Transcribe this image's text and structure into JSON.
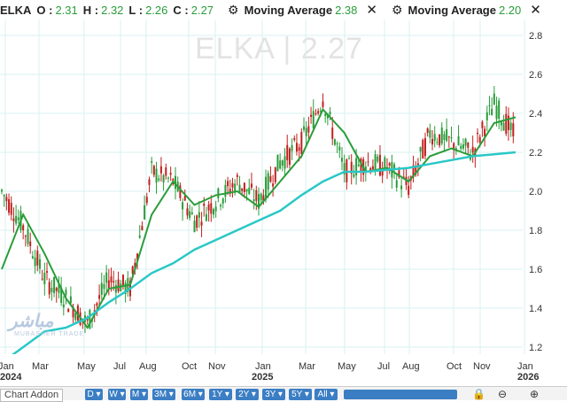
{
  "legend": {
    "symbol": "ELKA",
    "o_label": "O :",
    "o_value": "2.31",
    "h_label": "H :",
    "h_value": "2.32",
    "l_label": "L :",
    "l_value": "2.26",
    "c_label": "C :",
    "c_value": "2.27",
    "ma1_label": "Moving Average",
    "ma1_value": "2.38",
    "ma2_label": "Moving Average",
    "ma2_value": "2.20",
    "gear_icon": "gear-icon",
    "close_icon": "close-icon"
  },
  "watermark": "ELKA  |  2.27",
  "logo": {
    "name": "MUBASHER TRADE"
  },
  "toolbar": {
    "addon_label": "Chart Addon",
    "ranges": [
      "D",
      "W",
      "M",
      "3M",
      "6M",
      "1Y",
      "2Y",
      "3Y",
      "5Y",
      "All"
    ],
    "lock_icon": "lock-icon",
    "zoom_out_icon": "zoom-out-icon",
    "zoom_in_icon": "zoom-in-icon"
  },
  "colors": {
    "up": "#2a9d3a",
    "down": "#c0201e",
    "ma_fast": "#2a9d3a",
    "ma_slow": "#2bc7c7",
    "grid": "#d8f0f0"
  },
  "chart_data": {
    "type": "line",
    "title": "ELKA",
    "xlabel": "",
    "ylabel": "",
    "grid": true,
    "ylim": [
      1.1,
      2.9
    ],
    "y_ticks": [
      "2.8",
      "2.6",
      "2.4",
      "2.2",
      "2.0",
      "1.8",
      "1.6",
      "1.4",
      "1.2"
    ],
    "x_ticks": [
      "Jan",
      "Mar",
      "May",
      "Jul",
      "Aug",
      "Oct",
      "Nov",
      "Jan",
      "Mar",
      "May",
      "Jul",
      "Aug",
      "Oct",
      "Nov",
      "Jan"
    ],
    "year_ticks": [
      "2024",
      "2025",
      "2026"
    ],
    "x": [
      "2024-01",
      "2024-02",
      "2024-03",
      "2024-04",
      "2024-05",
      "2024-06",
      "2024-07",
      "2024-08",
      "2024-09",
      "2024-10",
      "2024-11",
      "2024-12",
      "2025-01",
      "2025-02",
      "2025-03",
      "2025-04",
      "2025-05",
      "2025-06",
      "2025-07",
      "2025-08",
      "2025-09",
      "2025-10",
      "2025-11",
      "2025-12",
      "2026-01"
    ],
    "series": [
      {
        "name": "ELKA",
        "values": [
          2.0,
          1.82,
          1.55,
          1.45,
          1.32,
          1.55,
          1.5,
          2.1,
          2.05,
          1.85,
          1.95,
          2.05,
          1.95,
          2.15,
          2.25,
          2.48,
          2.1,
          2.15,
          2.12,
          2.02,
          2.3,
          2.25,
          2.2,
          2.45,
          2.27
        ]
      },
      {
        "name": "Moving Average",
        "values": [
          1.6,
          1.88,
          1.68,
          1.45,
          1.3,
          1.5,
          1.52,
          1.88,
          2.05,
          1.93,
          1.98,
          2.0,
          1.92,
          2.05,
          2.18,
          2.42,
          2.3,
          2.1,
          2.12,
          2.05,
          2.18,
          2.22,
          2.18,
          2.35,
          2.38
        ]
      },
      {
        "name": "Moving Average",
        "values": [
          1.12,
          1.2,
          1.28,
          1.3,
          1.35,
          1.43,
          1.5,
          1.58,
          1.63,
          1.7,
          1.75,
          1.8,
          1.85,
          1.9,
          1.98,
          2.05,
          2.1,
          2.1,
          2.11,
          2.12,
          2.14,
          2.16,
          2.18,
          2.19,
          2.2
        ]
      }
    ]
  }
}
